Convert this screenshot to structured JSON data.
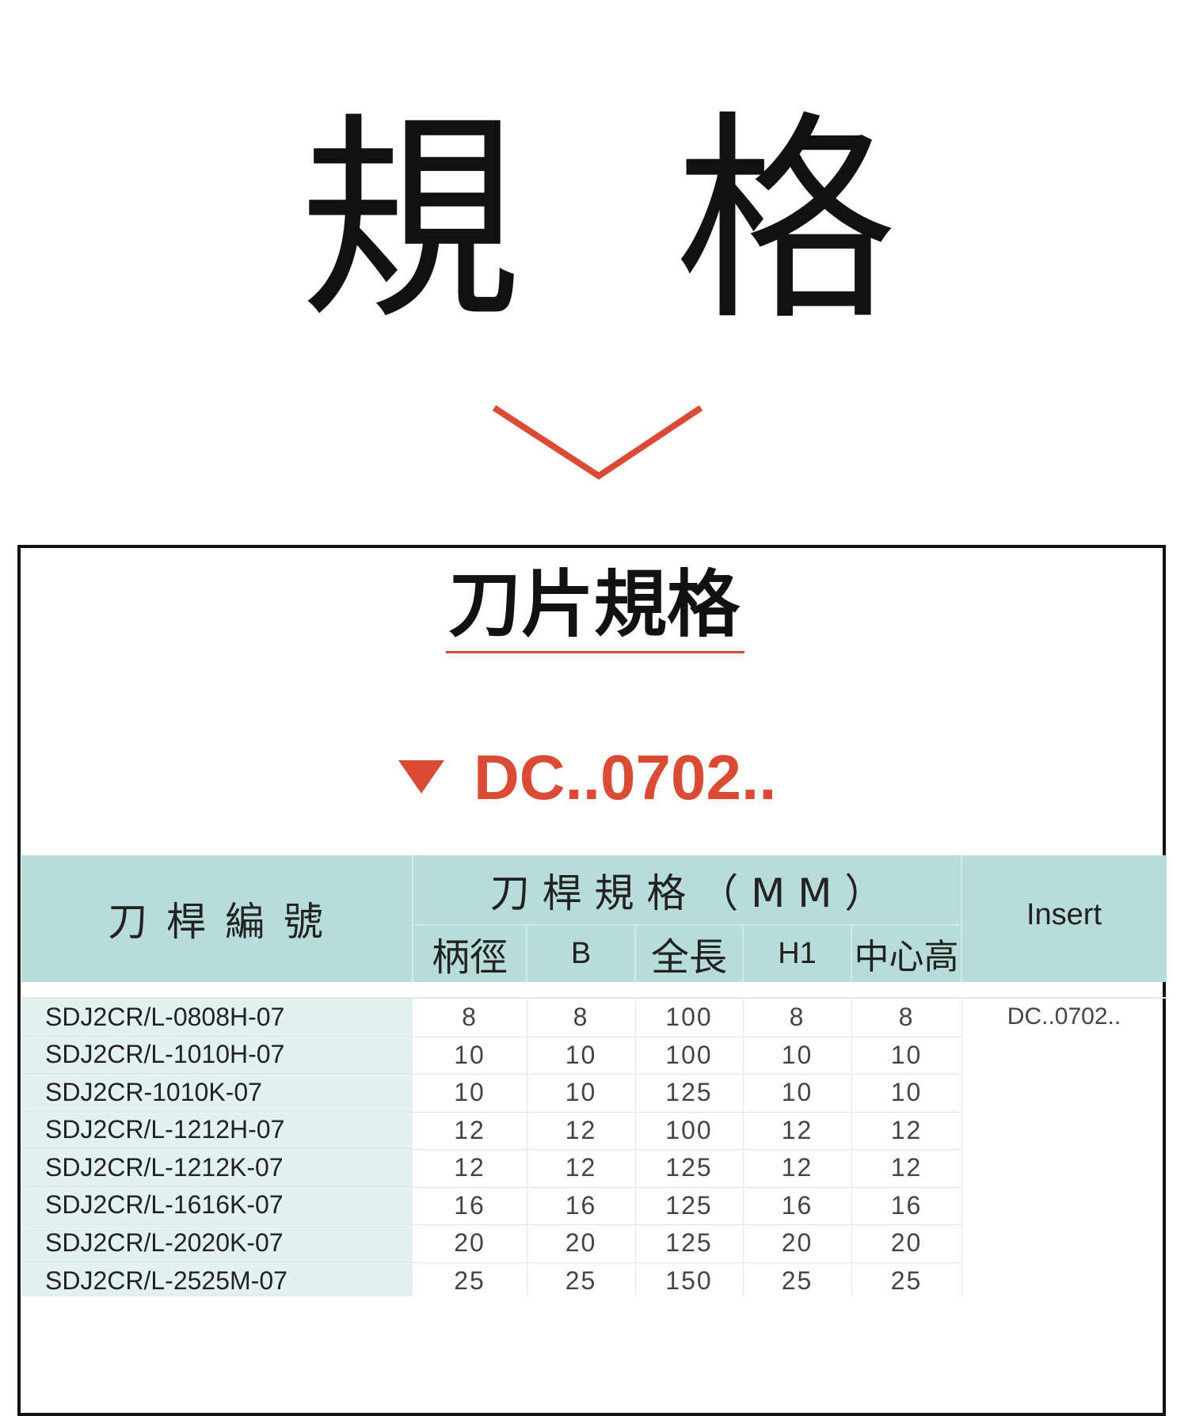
{
  "heading": {
    "char1": "規",
    "char2": "格",
    "chevron_icon": "chevron-down-icon"
  },
  "section": {
    "title": "刀片規格",
    "model_marker_icon": "triangle-down-icon",
    "model": "DC..0702.."
  },
  "colors": {
    "accent": "#d94b35",
    "header_bg": "#b8dcda",
    "first_col_bg": "#e3f1f0"
  },
  "table": {
    "header": {
      "code": "刀 桿 編 號",
      "spec_group": "刀 桿 規 格 （ M M ）",
      "insert": "Insert",
      "columns": [
        "柄徑",
        "B",
        "全長",
        "H1",
        "中心高"
      ]
    },
    "insert_value": "DC..0702..",
    "rows": [
      {
        "code": "SDJ2CR/L-0808H-07",
        "values": [
          "8",
          "8",
          "100",
          "8",
          "8"
        ]
      },
      {
        "code": "SDJ2CR/L-1010H-07",
        "values": [
          "10",
          "10",
          "100",
          "10",
          "10"
        ]
      },
      {
        "code": "SDJ2CR-1010K-07",
        "values": [
          "10",
          "10",
          "125",
          "10",
          "10"
        ]
      },
      {
        "code": "SDJ2CR/L-1212H-07",
        "values": [
          "12",
          "12",
          "100",
          "12",
          "12"
        ]
      },
      {
        "code": "SDJ2CR/L-1212K-07",
        "values": [
          "12",
          "12",
          "125",
          "12",
          "12"
        ]
      },
      {
        "code": "SDJ2CR/L-1616K-07",
        "values": [
          "16",
          "16",
          "125",
          "16",
          "16"
        ]
      },
      {
        "code": "SDJ2CR/L-2020K-07",
        "values": [
          "20",
          "20",
          "125",
          "20",
          "20"
        ]
      },
      {
        "code": "SDJ2CR/L-2525M-07",
        "values": [
          "25",
          "25",
          "150",
          "25",
          "25"
        ]
      }
    ]
  }
}
